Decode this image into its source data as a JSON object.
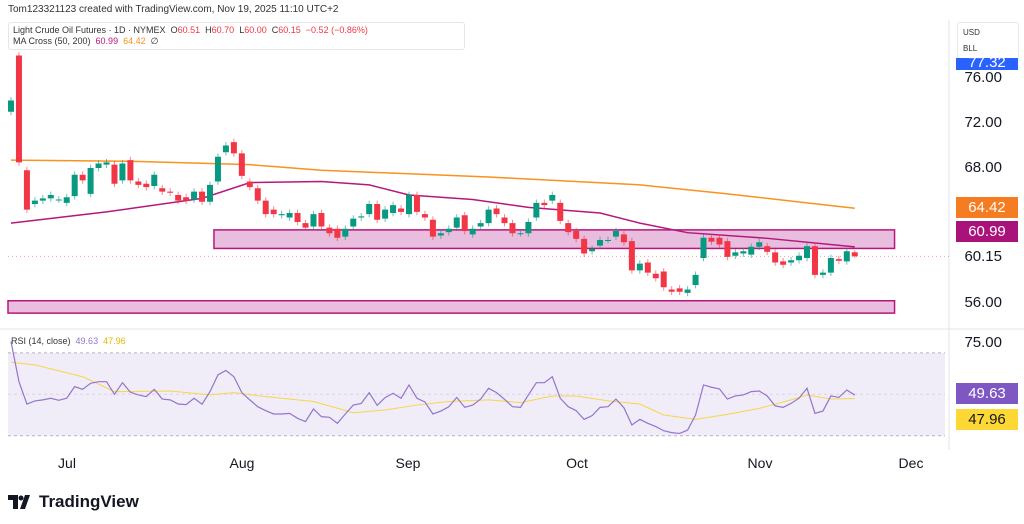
{
  "header": {
    "creator_line": "Tom123321123 created with TradingView.com, Nov 19, 2025 11:10 UTC+2"
  },
  "legend": {
    "symbol": "Light Crude Oil Futures · 1D · NYMEX",
    "open_label": "O",
    "open": "60.51",
    "high_label": "H",
    "high": "60.70",
    "low_label": "L",
    "low": "60.00",
    "close_label": "C",
    "close": "60.15",
    "change": "−0.52 (−0.86%)",
    "ma_title": "MA Cross (50, 200)",
    "ma50": "60.99",
    "ma200": "64.42",
    "ma_icon": "∅"
  },
  "units": {
    "currency": "USD",
    "unit": "BLL"
  },
  "price_axis": {
    "labels": [
      "76.00",
      "72.00",
      "68.00",
      "60.15",
      "56.00"
    ],
    "badges": {
      "high_mark": "77.32",
      "ma200": "64.42",
      "ma50": "60.99"
    }
  },
  "rsi": {
    "title": "RSI (14, close)",
    "value": "49.63",
    "ma": "47.96",
    "axis_label": "75.00"
  },
  "x_axis": {
    "labels": [
      "Jul",
      "Aug",
      "Sep",
      "Oct",
      "Nov",
      "Dec"
    ]
  },
  "brand": {
    "name": "TradingView"
  },
  "colors": {
    "up": "#089981",
    "down": "#f23645",
    "ma50": "#b5177e",
    "ma200": "#f7931e",
    "zone_fill": "#e9bddd",
    "zone_border": "#b5177e",
    "rsi": "#9575cd",
    "rsi_ma": "#f7d64a",
    "rsi_bg": "#f0ecf8",
    "blue": "#2962ff",
    "rsi_badge": "#7e57c2",
    "rsi_ma_badge": "#fdd835"
  },
  "chart_data": {
    "type": "candlestick",
    "candles_oc": [
      [
        73.0,
        74.0
      ],
      [
        78.0,
        68.5
      ],
      [
        67.8,
        64.3
      ],
      [
        64.8,
        65.1
      ],
      [
        65.1,
        65.3
      ],
      [
        65.3,
        65.6
      ],
      [
        65.2,
        65.2
      ],
      [
        64.9,
        65.4
      ],
      [
        65.5,
        67.4
      ],
      [
        67.4,
        66.9
      ],
      [
        65.7,
        68.0
      ],
      [
        68.0,
        68.4
      ],
      [
        68.3,
        68.5
      ],
      [
        68.3,
        66.6
      ],
      [
        66.9,
        68.4
      ],
      [
        68.7,
        66.9
      ],
      [
        66.8,
        66.5
      ],
      [
        66.6,
        66.3
      ],
      [
        66.4,
        67.4
      ],
      [
        66.2,
        65.9
      ],
      [
        65.9,
        65.8
      ],
      [
        65.6,
        65.1
      ],
      [
        65.4,
        65.1
      ],
      [
        65.2,
        65.9
      ],
      [
        65.9,
        65.0
      ],
      [
        65.0,
        66.5
      ],
      [
        66.8,
        69.0
      ],
      [
        69.4,
        70.0
      ],
      [
        70.3,
        69.3
      ],
      [
        69.3,
        67.3
      ],
      [
        66.8,
        66.3
      ],
      [
        66.2,
        65.1
      ],
      [
        65.1,
        63.9
      ],
      [
        64.3,
        63.9
      ],
      [
        63.8,
        63.9
      ],
      [
        63.6,
        64.0
      ],
      [
        64.0,
        63.2
      ],
      [
        63.1,
        62.7
      ],
      [
        62.8,
        63.9
      ],
      [
        64.0,
        62.8
      ],
      [
        62.7,
        62.2
      ],
      [
        62.6,
        61.8
      ],
      [
        61.9,
        62.6
      ],
      [
        62.8,
        63.5
      ],
      [
        63.6,
        63.7
      ],
      [
        63.9,
        64.8
      ],
      [
        64.8,
        63.4
      ],
      [
        63.5,
        64.3
      ],
      [
        64.0,
        64.7
      ],
      [
        64.4,
        64.1
      ],
      [
        63.9,
        65.6
      ],
      [
        65.6,
        64.1
      ],
      [
        63.9,
        63.6
      ],
      [
        63.4,
        61.9
      ],
      [
        62.0,
        62.2
      ],
      [
        62.3,
        62.6
      ],
      [
        62.7,
        63.6
      ],
      [
        63.8,
        62.4
      ],
      [
        62.1,
        62.6
      ],
      [
        62.8,
        63.1
      ],
      [
        63.1,
        64.3
      ],
      [
        64.4,
        63.9
      ],
      [
        63.6,
        63.1
      ],
      [
        63.1,
        62.2
      ],
      [
        62.2,
        62.2
      ],
      [
        62.2,
        63.2
      ],
      [
        63.6,
        64.9
      ],
      [
        64.9,
        64.7
      ],
      [
        65.1,
        65.6
      ],
      [
        64.9,
        63.3
      ],
      [
        63.1,
        62.3
      ],
      [
        62.4,
        61.7
      ],
      [
        61.7,
        60.4
      ],
      [
        60.6,
        60.8
      ],
      [
        61.1,
        61.6
      ],
      [
        61.6,
        61.6
      ],
      [
        61.9,
        62.4
      ],
      [
        62.1,
        61.4
      ],
      [
        61.5,
        58.9
      ],
      [
        58.9,
        59.5
      ],
      [
        59.6,
        58.7
      ],
      [
        58.6,
        58.2
      ],
      [
        58.8,
        57.4
      ],
      [
        57.2,
        57.0
      ],
      [
        57.3,
        57.0
      ],
      [
        56.9,
        57.2
      ],
      [
        57.6,
        58.5
      ],
      [
        60.0,
        61.8
      ],
      [
        61.8,
        61.45
      ],
      [
        61.8,
        61.2
      ],
      [
        61.5,
        60.1
      ],
      [
        60.2,
        60.5
      ],
      [
        60.4,
        60.6
      ],
      [
        60.3,
        61.0
      ],
      [
        61.0,
        61.4
      ],
      [
        61.05,
        60.55
      ],
      [
        60.5,
        59.6
      ],
      [
        59.7,
        59.4
      ],
      [
        59.6,
        59.8
      ],
      [
        59.8,
        60.2
      ],
      [
        60.0,
        61.05
      ],
      [
        61.05,
        58.5
      ],
      [
        58.5,
        58.7
      ],
      [
        58.7,
        60.0
      ],
      [
        59.9,
        59.75
      ],
      [
        59.7,
        60.6
      ],
      [
        60.51,
        60.15
      ]
    ],
    "ma200": [
      [
        0,
        68.7
      ],
      [
        15,
        68.6
      ],
      [
        30,
        68.3
      ],
      [
        39,
        67.8
      ],
      [
        60,
        67.2
      ],
      [
        79,
        66.5
      ],
      [
        90,
        65.7
      ],
      [
        100,
        64.9
      ],
      [
        106,
        64.42
      ]
    ],
    "ma50": [
      [
        0,
        63.1
      ],
      [
        12,
        64.1
      ],
      [
        24,
        65.3
      ],
      [
        30,
        66.7
      ],
      [
        39,
        66.8
      ],
      [
        45,
        66.5
      ],
      [
        50,
        65.6
      ],
      [
        58,
        65.2
      ],
      [
        65,
        64.5
      ],
      [
        74,
        64.0
      ],
      [
        79,
        63.1
      ],
      [
        85,
        62.25
      ],
      [
        95,
        61.75
      ],
      [
        106,
        60.99
      ]
    ],
    "zones": [
      {
        "start": 26,
        "end": 111,
        "top": 62.5,
        "bottom": 60.85
      },
      {
        "start": 0,
        "end": 111,
        "top": 56.2,
        "bottom": 55.1
      }
    ],
    "rsi_values": [
      75.5,
      56.1,
      45.3,
      46.8,
      47.3,
      48.1,
      47.1,
      48.1,
      53.7,
      52.4,
      55.3,
      56.1,
      56.1,
      50,
      55.6,
      51,
      49.7,
      48.9,
      52.4,
      47.7,
      47.3,
      45.3,
      45,
      48.1,
      45.2,
      51.3,
      59.4,
      61.5,
      58.5,
      50.8,
      47.3,
      44,
      42.1,
      40.5,
      40.5,
      40.8,
      38.4,
      36.8,
      42.9,
      39.2,
      38.9,
      36,
      40.5,
      44.8,
      45.6,
      50.8,
      44.7,
      48.4,
      50.5,
      48.1,
      54.5,
      48.1,
      46.3,
      40.5,
      41.9,
      44,
      48.5,
      43.7,
      44.8,
      47.7,
      52.9,
      50.8,
      47.6,
      44,
      43.7,
      49.7,
      55.6,
      55.6,
      58.5,
      48.1,
      44,
      42.1,
      37.9,
      39.7,
      43.7,
      44,
      47.7,
      43.5,
      35.2,
      37.9,
      36,
      34.4,
      32.4,
      31.5,
      31.1,
      32.7,
      40,
      54.5,
      53.4,
      52.6,
      47.7,
      49.2,
      49.7,
      51.3,
      51.6,
      49.2,
      44.4,
      43.7,
      45.6,
      48.1,
      52.9,
      40.8,
      41.9,
      49.2,
      48.5,
      52.1,
      49.63
    ],
    "rsi_ma": [
      [
        0,
        65.5
      ],
      [
        3,
        64.2
      ],
      [
        9,
        58.5
      ],
      [
        13,
        51.3
      ],
      [
        20,
        51.6
      ],
      [
        25,
        49.7
      ],
      [
        28,
        50.8
      ],
      [
        32,
        48.9
      ],
      [
        38,
        46.5
      ],
      [
        43,
        41.1
      ],
      [
        47,
        42.4
      ],
      [
        51,
        44.8
      ],
      [
        55,
        46.5
      ],
      [
        60,
        47.3
      ],
      [
        64,
        46
      ],
      [
        68,
        49.2
      ],
      [
        71,
        49.2
      ],
      [
        75,
        46.8
      ],
      [
        79,
        45.3
      ],
      [
        82,
        40
      ],
      [
        86,
        37.9
      ],
      [
        90,
        40.3
      ],
      [
        94,
        43.2
      ],
      [
        98,
        47.3
      ],
      [
        100,
        49.7
      ],
      [
        103,
        47.7
      ],
      [
        106,
        47.96
      ]
    ],
    "rsi_levels": [
      70,
      50,
      30
    ],
    "price_range": [
      55,
      78
    ],
    "x_ticks": [
      "Jul",
      "Aug",
      "Sep",
      "Oct",
      "Nov",
      "Dec"
    ]
  }
}
